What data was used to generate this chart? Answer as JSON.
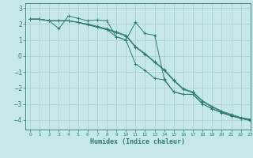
{
  "xlabel": "Humidex (Indice chaleur)",
  "bg_color": "#c6e8e8",
  "line_color": "#2e7d6e",
  "grid_color": "#a8cccc",
  "xlim": [
    -0.5,
    23
  ],
  "ylim": [
    -4.6,
    3.3
  ],
  "yticks": [
    3,
    2,
    1,
    0,
    -1,
    -2,
    -3,
    -4
  ],
  "xticks": [
    0,
    1,
    2,
    3,
    4,
    5,
    6,
    7,
    8,
    9,
    10,
    11,
    12,
    13,
    14,
    15,
    16,
    17,
    18,
    19,
    20,
    21,
    22,
    23
  ],
  "lines": [
    {
      "x": [
        0,
        1,
        2,
        3,
        4,
        5,
        6,
        7,
        8,
        9,
        10,
        11,
        12,
        13,
        14,
        15,
        16,
        17,
        18,
        19,
        20,
        21,
        22,
        23
      ],
      "y": [
        2.3,
        2.3,
        2.2,
        2.2,
        2.2,
        2.1,
        1.95,
        1.8,
        1.65,
        1.45,
        1.25,
        0.55,
        0.1,
        -0.4,
        -0.9,
        -1.55,
        -2.1,
        -2.3,
        -2.85,
        -3.2,
        -3.5,
        -3.7,
        -3.9,
        -4.0
      ]
    },
    {
      "x": [
        0,
        1,
        2,
        3,
        4,
        5,
        6,
        7,
        8,
        9,
        10,
        11,
        12,
        13,
        14,
        15,
        16,
        17,
        18,
        19,
        20,
        21,
        22,
        23
      ],
      "y": [
        2.3,
        2.3,
        2.2,
        2.2,
        2.2,
        2.1,
        2.0,
        1.85,
        1.7,
        1.5,
        1.3,
        0.6,
        0.15,
        -0.35,
        -0.85,
        -1.5,
        -2.05,
        -2.25,
        -2.8,
        -3.15,
        -3.45,
        -3.65,
        -3.85,
        -3.95
      ]
    },
    {
      "x": [
        0,
        1,
        2,
        3,
        4,
        5,
        6,
        7,
        8,
        9,
        10,
        11,
        12,
        13,
        14,
        15,
        16,
        17,
        18,
        19,
        20,
        21,
        22,
        23
      ],
      "y": [
        2.3,
        2.3,
        2.2,
        1.7,
        2.5,
        2.35,
        2.2,
        2.25,
        2.2,
        1.2,
        1.0,
        -0.5,
        -0.9,
        -1.4,
        -1.5,
        -2.25,
        -2.4,
        -2.4,
        -3.0,
        -3.3,
        -3.55,
        -3.75,
        -3.9,
        -4.0
      ]
    },
    {
      "x": [
        0,
        1,
        2,
        3,
        4,
        5,
        6,
        7,
        8,
        9,
        10,
        11,
        12,
        13,
        14,
        15,
        16,
        17,
        18,
        19,
        20,
        21,
        22,
        23
      ],
      "y": [
        2.3,
        2.3,
        2.2,
        2.2,
        2.2,
        2.1,
        1.95,
        1.8,
        1.65,
        1.2,
        1.0,
        2.1,
        1.4,
        1.3,
        -1.45,
        -2.25,
        -2.4,
        -2.4,
        -3.0,
        -3.3,
        -3.55,
        -3.75,
        -3.9,
        -4.05
      ]
    }
  ]
}
